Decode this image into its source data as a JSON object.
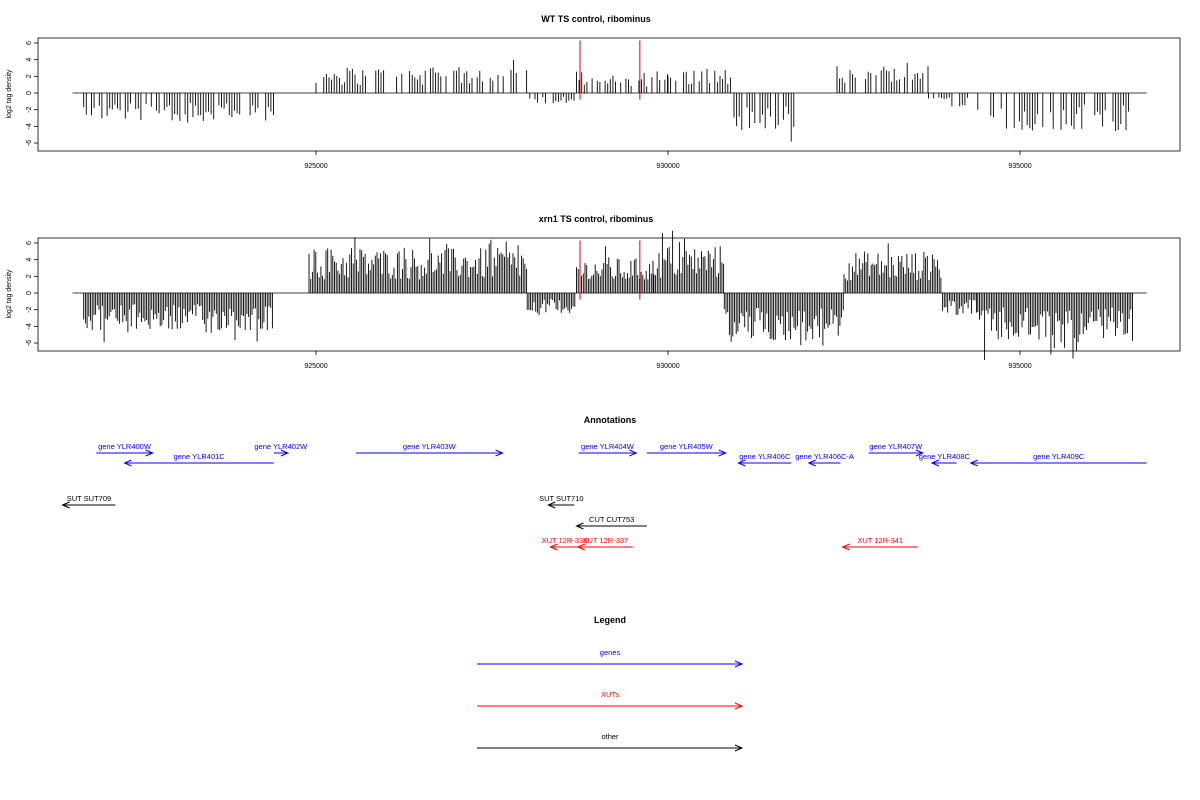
{
  "colors": {
    "gene": "#0000ff",
    "xut": "#ff0000",
    "other": "#000000",
    "marker": "#e00000"
  },
  "chart_data": [
    {
      "type": "bar",
      "title": "WT TS control, ribominus",
      "ylabel": "log2 tag density",
      "ylim": [
        -6,
        6
      ],
      "yticks": [
        "6",
        "4",
        "2",
        "0",
        "-2",
        "-4",
        "-6"
      ],
      "xlim": [
        921500,
        936800
      ],
      "xticks": [
        "925000",
        "930000",
        "935000"
      ],
      "marker_positions": [
        928750,
        929600
      ],
      "grid": false,
      "segments": [
        {
          "start": 921700,
          "end": 924400,
          "level": -2.8
        },
        {
          "start": 925000,
          "end": 928000,
          "level": 2.6
        },
        {
          "start": 928000,
          "end": 928700,
          "level": -1.2
        },
        {
          "start": 928700,
          "end": 930000,
          "level": 2.2
        },
        {
          "start": 930000,
          "end": 930900,
          "level": 2.4
        },
        {
          "start": 930900,
          "end": 931800,
          "level": -3.8
        },
        {
          "start": 932400,
          "end": 933700,
          "level": 2.8
        },
        {
          "start": 933700,
          "end": 934400,
          "level": -1.5
        },
        {
          "start": 934400,
          "end": 936600,
          "level": -3.8
        }
      ]
    },
    {
      "type": "bar",
      "title": "xrn1 TS control, ribominus",
      "ylabel": "log2 tag density",
      "ylim": [
        -6,
        6
      ],
      "yticks": [
        "6",
        "4",
        "2",
        "0",
        "-2",
        "-4",
        "-6"
      ],
      "xlim": [
        921500,
        936800
      ],
      "xticks": [
        "925000",
        "930000",
        "935000"
      ],
      "marker_positions": [
        928750,
        929600
      ],
      "grid": false,
      "segments": [
        {
          "start": 921700,
          "end": 924400,
          "level": -3.8
        },
        {
          "start": 924900,
          "end": 928000,
          "level": 4.5
        },
        {
          "start": 928000,
          "end": 928700,
          "level": -2.0
        },
        {
          "start": 928700,
          "end": 929800,
          "level": 3.5
        },
        {
          "start": 929800,
          "end": 930800,
          "level": 4.8
        },
        {
          "start": 930800,
          "end": 932500,
          "level": -4.8
        },
        {
          "start": 932500,
          "end": 933900,
          "level": 4.2
        },
        {
          "start": 933900,
          "end": 934400,
          "level": -2.2
        },
        {
          "start": 934400,
          "end": 936600,
          "level": -5.0
        }
      ]
    }
  ],
  "annotations": {
    "title": "Annotations",
    "items": [
      {
        "label": "gene YLR400W",
        "kind": "gene",
        "start": 921880,
        "end": 922680
      },
      {
        "label": "gene YLR401C",
        "kind": "gene",
        "start": 922280,
        "end": 924400
      },
      {
        "label": "gene YLR402W",
        "kind": "gene",
        "start": 924400,
        "end": 924600
      },
      {
        "label": "gene YLR403W",
        "kind": "gene",
        "start": 925570,
        "end": 927650
      },
      {
        "label": "gene YLR404W",
        "kind": "gene",
        "start": 928730,
        "end": 929550
      },
      {
        "label": "gene YLR405W",
        "kind": "gene",
        "start": 929700,
        "end": 930820
      },
      {
        "label": "gene YLR406C",
        "kind": "gene",
        "start": 931000,
        "end": 931750
      },
      {
        "label": "gene YLR406C-A",
        "kind": "gene",
        "start": 932000,
        "end": 932450
      },
      {
        "label": "gene YLR407W",
        "kind": "gene",
        "start": 932850,
        "end": 933620
      },
      {
        "label": "gene YLR408C",
        "kind": "gene",
        "start": 933750,
        "end": 934100
      },
      {
        "label": "gene YLR409C",
        "kind": "gene",
        "start": 934300,
        "end": 936800
      },
      {
        "label": "SUT SUT709",
        "kind": "other",
        "start": 921400,
        "end": 922150
      },
      {
        "label": "SUT SUT710",
        "kind": "other",
        "start": 928300,
        "end": 928670
      },
      {
        "label": "CUT CUT753",
        "kind": "other",
        "start": 928700,
        "end": 929700
      },
      {
        "label": "XUT 12R-336",
        "kind": "xut",
        "start": 928330,
        "end": 928730
      },
      {
        "label": "XUT 12R-337",
        "kind": "xut",
        "start": 928720,
        "end": 929500
      },
      {
        "label": "XUT 12R-341",
        "kind": "xut",
        "start": 932480,
        "end": 933550
      }
    ]
  },
  "legend": {
    "title": "Legend",
    "items": [
      {
        "label": "genes",
        "kind": "gene"
      },
      {
        "label": "XUTs",
        "kind": "xut"
      },
      {
        "label": "other",
        "kind": "other"
      }
    ]
  }
}
